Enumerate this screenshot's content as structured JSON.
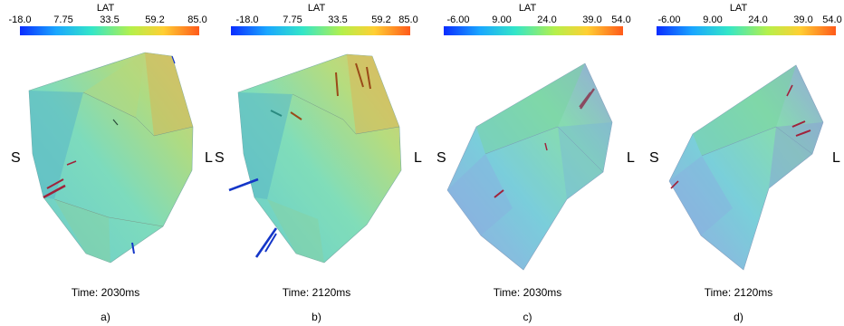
{
  "panels": [
    {
      "colorbar_title": "LAT",
      "ticks": [
        "-18.0",
        "7.75",
        "33.5",
        "59.2",
        "85.0"
      ],
      "left_label": "S",
      "right_label": "L",
      "time": "Time: 2030ms",
      "caption": "a)"
    },
    {
      "colorbar_title": "LAT",
      "ticks": [
        "-18.0",
        "7.75",
        "33.5",
        "59.2",
        "85.0"
      ],
      "left_label": "S",
      "right_label": "L",
      "time": "Time: 2120ms",
      "caption": "b)"
    },
    {
      "colorbar_title": "LAT",
      "ticks": [
        "-6.00",
        "9.00",
        "24.0",
        "39.0",
        "54.0"
      ],
      "left_label": "S",
      "right_label": "L",
      "time": "Time: 2030ms",
      "caption": "c)"
    },
    {
      "colorbar_title": "LAT",
      "ticks": [
        "-6.00",
        "9.00",
        "24.0",
        "39.0",
        "54.0"
      ],
      "left_label": "S",
      "right_label": "L",
      "time": "Time: 2120ms",
      "caption": "d)"
    }
  ],
  "colors": {
    "colormap": [
      "#0a2cff",
      "#1aa6ff",
      "#33e6c8",
      "#b5f04b",
      "#ffcf33",
      "#ff5a1a"
    ],
    "arrow_red": "#a0223a",
    "arrow_blue": "#1436c8",
    "arrow_brown": "#9a4a18"
  }
}
